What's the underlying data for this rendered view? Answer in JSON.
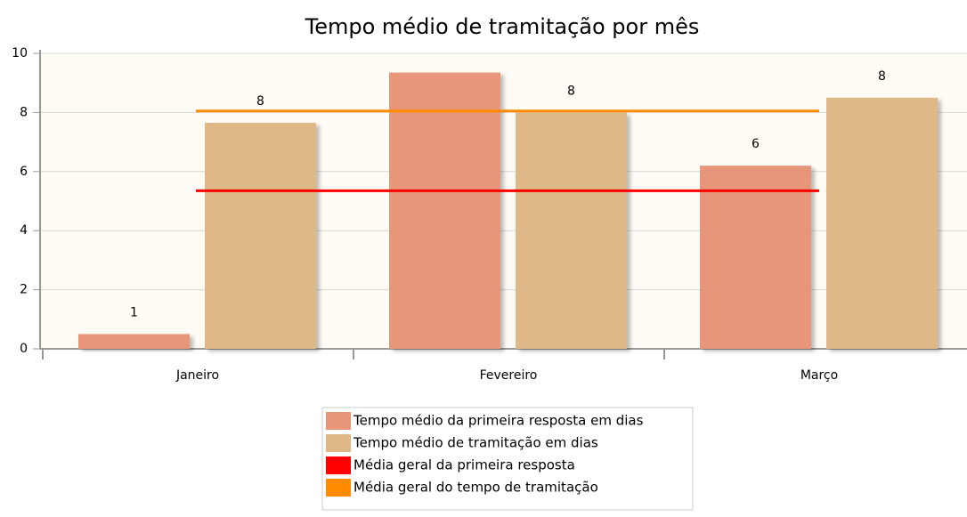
{
  "chart_data": {
    "type": "bar",
    "title": "Tempo médio de tramitação por mês",
    "categories": [
      "Janeiro",
      "Fevereiro",
      "Março"
    ],
    "series": [
      {
        "name": "Tempo médio da primeira resposta em dias",
        "color": "#e8967a",
        "values": [
          0.5,
          9.35,
          6.2
        ],
        "value_labels": [
          "1",
          null,
          "6"
        ]
      },
      {
        "name": "Tempo médio de tramitação em dias",
        "color": "#deb887",
        "values": [
          7.65,
          8.0,
          8.5
        ],
        "value_labels": [
          "8",
          "8",
          "8"
        ]
      }
    ],
    "reference_lines": [
      {
        "name": "Média geral da primeira resposta",
        "color": "#ff0000",
        "value": 5.35
      },
      {
        "name": "Média geral do tempo de tramitação",
        "color": "#ff8c00",
        "value": 8.05
      }
    ],
    "ylim": [
      0,
      10
    ],
    "yticks": [
      0,
      2,
      4,
      6,
      8,
      10
    ],
    "grid": true
  }
}
